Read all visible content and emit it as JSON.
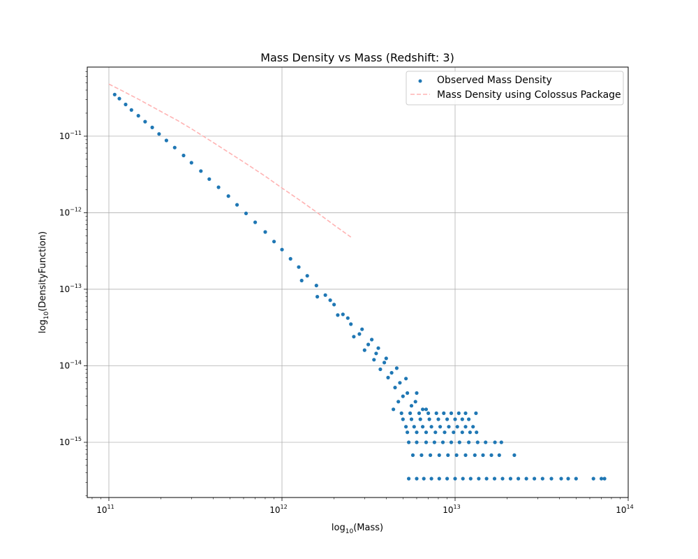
{
  "chart_data": {
    "type": "scatter",
    "title": "Mass Density vs Mass (Redshift: 3)",
    "xlabel": {
      "prefix": "log",
      "sub": "10",
      "text": "(Mass)"
    },
    "ylabel": {
      "prefix": "log",
      "sub": "10",
      "text": "(DensityFunction)"
    },
    "xscale": "log",
    "yscale": "log",
    "xlim": [
      75000000000.0,
      100000000000000.0
    ],
    "ylim": [
      1.9e-16,
      8e-11
    ],
    "grid": true,
    "legend_position": "top-right",
    "x_ticks": [
      {
        "value": 100000000000.0,
        "base": "10",
        "exp": "11"
      },
      {
        "value": 1000000000000.0,
        "base": "10",
        "exp": "12"
      },
      {
        "value": 10000000000000.0,
        "base": "10",
        "exp": "13"
      },
      {
        "value": 100000000000000.0,
        "base": "10",
        "exp": "14"
      }
    ],
    "y_ticks": [
      {
        "value": 1e-11,
        "base": "10",
        "exp": "−11"
      },
      {
        "value": 1e-12,
        "base": "10",
        "exp": "−12"
      },
      {
        "value": 1e-13,
        "base": "10",
        "exp": "−13"
      },
      {
        "value": 1e-14,
        "base": "10",
        "exp": "−14"
      },
      {
        "value": 1e-15,
        "base": "10",
        "exp": "−15"
      }
    ],
    "series": [
      {
        "name": "Observed Mass Density",
        "kind": "scatter",
        "color": "#1f77b4",
        "points": [
          [
            108000000000.0,
            3.5e-11
          ],
          [
            115000000000.0,
            3.1e-11
          ],
          [
            125000000000.0,
            2.6e-11
          ],
          [
            135000000000.0,
            2.2e-11
          ],
          [
            148000000000.0,
            1.85e-11
          ],
          [
            162000000000.0,
            1.55e-11
          ],
          [
            178000000000.0,
            1.3e-11
          ],
          [
            195000000000.0,
            1.07e-11
          ],
          [
            215000000000.0,
            8.8e-12
          ],
          [
            240000000000.0,
            7.1e-12
          ],
          [
            270000000000.0,
            5.6e-12
          ],
          [
            300000000000.0,
            4.5e-12
          ],
          [
            340000000000.0,
            3.5e-12
          ],
          [
            380000000000.0,
            2.75e-12
          ],
          [
            430000000000.0,
            2.15e-12
          ],
          [
            490000000000.0,
            1.65e-12
          ],
          [
            550000000000.0,
            1.27e-12
          ],
          [
            620000000000.0,
            9.8e-13
          ],
          [
            700000000000.0,
            7.5e-13
          ],
          [
            800000000000.0,
            5.6e-13
          ],
          [
            900000000000.0,
            4.2e-13
          ],
          [
            1000000000000.0,
            3.3e-13
          ],
          [
            1120000000000.0,
            2.5e-13
          ],
          [
            1250000000000.0,
            1.95e-13
          ],
          [
            1400000000000.0,
            1.5e-13
          ],
          [
            1580000000000.0,
            1.12e-13
          ],
          [
            1780000000000.0,
            8.4e-14
          ],
          [
            2000000000000.0,
            6.3e-14
          ],
          [
            2250000000000.0,
            4.7e-14
          ],
          [
            2500000000000.0,
            3.5e-14
          ],
          [
            2800000000000.0,
            2.6e-14
          ],
          [
            3150000000000.0,
            1.9e-14
          ],
          [
            3500000000000.0,
            1.45e-14
          ],
          [
            3900000000000.0,
            1.1e-14
          ],
          [
            4300000000000.0,
            8.1e-15
          ],
          [
            4800000000000.0,
            6e-15
          ],
          [
            5300000000000.0,
            4.4e-15
          ],
          [
            5900000000000.0,
            3.4e-15
          ],
          [
            6500000000000.0,
            2.7e-15
          ],
          [
            1300000000000.0,
            1.3e-13
          ],
          [
            1600000000000.0,
            8e-14
          ],
          [
            2100000000000.0,
            4.6e-14
          ],
          [
            2600000000000.0,
            2.4e-14
          ],
          [
            3000000000000.0,
            1.6e-14
          ],
          [
            3400000000000.0,
            1.2e-14
          ],
          [
            3700000000000.0,
            9e-15
          ],
          [
            4100000000000.0,
            7e-15
          ],
          [
            4500000000000.0,
            5.2e-15
          ],
          [
            5000000000000.0,
            4e-15
          ],
          [
            5600000000000.0,
            3e-15
          ],
          [
            1900000000000.0,
            7.2e-14
          ],
          [
            2400000000000.0,
            4.2e-14
          ],
          [
            2900000000000.0,
            3e-14
          ],
          [
            3300000000000.0,
            2.2e-14
          ],
          [
            3600000000000.0,
            1.7e-14
          ],
          [
            4000000000000.0,
            1.25e-14
          ],
          [
            4600000000000.0,
            9.3e-15
          ],
          [
            5200000000000.0,
            6.8e-15
          ],
          [
            4400000000000.0,
            2.7e-15
          ],
          [
            4700000000000.0,
            3.4e-15
          ],
          [
            6000000000000.0,
            4.4e-15
          ],
          [
            6800000000000.0,
            2.7e-15
          ],
          [
            4900000000000.0,
            2.4e-15
          ],
          [
            5500000000000.0,
            2.4e-15
          ],
          [
            6200000000000.0,
            2.4e-15
          ],
          [
            7000000000000.0,
            2.4e-15
          ],
          [
            7800000000000.0,
            2.4e-15
          ],
          [
            8600000000000.0,
            2.4e-15
          ],
          [
            9500000000000.0,
            2.4e-15
          ],
          [
            10500000000000.0,
            2.4e-15
          ],
          [
            11500000000000.0,
            2.4e-15
          ],
          [
            5000000000000.0,
            2e-15
          ],
          [
            5600000000000.0,
            2e-15
          ],
          [
            6300000000000.0,
            2e-15
          ],
          [
            7100000000000.0,
            2e-15
          ],
          [
            8000000000000.0,
            2e-15
          ],
          [
            9000000000000.0,
            2e-15
          ],
          [
            10000000000000.0,
            2e-15
          ],
          [
            11000000000000.0,
            2e-15
          ],
          [
            12000000000000.0,
            2e-15
          ],
          [
            5200000000000.0,
            1.6e-15
          ],
          [
            5800000000000.0,
            1.6e-15
          ],
          [
            6500000000000.0,
            1.6e-15
          ],
          [
            7300000000000.0,
            1.6e-15
          ],
          [
            8200000000000.0,
            1.6e-15
          ],
          [
            9200000000000.0,
            1.6e-15
          ],
          [
            10300000000000.0,
            1.6e-15
          ],
          [
            11500000000000.0,
            1.6e-15
          ],
          [
            12700000000000.0,
            1.6e-15
          ],
          [
            5300000000000.0,
            1.35e-15
          ],
          [
            6000000000000.0,
            1.35e-15
          ],
          [
            6800000000000.0,
            1.35e-15
          ],
          [
            7700000000000.0,
            1.35e-15
          ],
          [
            8700000000000.0,
            1.35e-15
          ],
          [
            9800000000000.0,
            1.35e-15
          ],
          [
            11000000000000.0,
            1.35e-15
          ],
          [
            12200000000000.0,
            1.35e-15
          ],
          [
            13300000000000.0,
            1.35e-15
          ],
          [
            13200000000000.0,
            2.4e-15
          ],
          [
            5400000000000.0,
            1e-15
          ],
          [
            6000000000000.0,
            1e-15
          ],
          [
            6800000000000.0,
            1e-15
          ],
          [
            7600000000000.0,
            1e-15
          ],
          [
            8500000000000.0,
            1e-15
          ],
          [
            9500000000000.0,
            1e-15
          ],
          [
            10600000000000.0,
            1e-15
          ],
          [
            12000000000000.0,
            1e-15
          ],
          [
            13500000000000.0,
            1e-15
          ],
          [
            15000000000000.0,
            1e-15
          ],
          [
            17000000000000.0,
            1e-15
          ],
          [
            18500000000000.0,
            1e-15
          ],
          [
            5700000000000.0,
            6.8e-16
          ],
          [
            6400000000000.0,
            6.8e-16
          ],
          [
            7200000000000.0,
            6.8e-16
          ],
          [
            8100000000000.0,
            6.8e-16
          ],
          [
            9100000000000.0,
            6.8e-16
          ],
          [
            10200000000000.0,
            6.8e-16
          ],
          [
            11500000000000.0,
            6.8e-16
          ],
          [
            13000000000000.0,
            6.8e-16
          ],
          [
            14500000000000.0,
            6.8e-16
          ],
          [
            16200000000000.0,
            6.8e-16
          ],
          [
            18000000000000.0,
            6.8e-16
          ],
          [
            22000000000000.0,
            6.8e-16
          ],
          [
            5400000000000.0,
            3.35e-16
          ],
          [
            6000000000000.0,
            3.35e-16
          ],
          [
            6600000000000.0,
            3.35e-16
          ],
          [
            7300000000000.0,
            3.35e-16
          ],
          [
            8100000000000.0,
            3.35e-16
          ],
          [
            9000000000000.0,
            3.35e-16
          ],
          [
            10000000000000.0,
            3.35e-16
          ],
          [
            11100000000000.0,
            3.35e-16
          ],
          [
            12300000000000.0,
            3.35e-16
          ],
          [
            13700000000000.0,
            3.35e-16
          ],
          [
            15200000000000.0,
            3.35e-16
          ],
          [
            16900000000000.0,
            3.35e-16
          ],
          [
            18800000000000.0,
            3.35e-16
          ],
          [
            20900000000000.0,
            3.35e-16
          ],
          [
            23200000000000.0,
            3.35e-16
          ],
          [
            25800000000000.0,
            3.35e-16
          ],
          [
            28700000000000.0,
            3.35e-16
          ],
          [
            32000000000000.0,
            3.35e-16
          ],
          [
            36000000000000.0,
            3.35e-16
          ],
          [
            41000000000000.0,
            3.35e-16
          ],
          [
            45000000000000.0,
            3.35e-16
          ],
          [
            50000000000000.0,
            3.35e-16
          ],
          [
            63000000000000.0,
            3.35e-16
          ],
          [
            70000000000000.0,
            3.35e-16
          ],
          [
            73000000000000.0,
            3.35e-16
          ]
        ]
      },
      {
        "name": "Mass Density using Colossus Package",
        "kind": "line",
        "style": "dashed",
        "color": "#ffb3b3",
        "points": [
          [
            100000000000.0,
            4.8e-11
          ],
          [
            120000000000.0,
            3.9e-11
          ],
          [
            150000000000.0,
            3e-11
          ],
          [
            200000000000.0,
            2.1e-11
          ],
          [
            250000000000.0,
            1.6e-11
          ],
          [
            300000000000.0,
            1.25e-11
          ],
          [
            400000000000.0,
            8.3e-12
          ],
          [
            500000000000.0,
            6e-12
          ],
          [
            600000000000.0,
            4.6e-12
          ],
          [
            800000000000.0,
            3e-12
          ],
          [
            1000000000000.0,
            2.1e-12
          ],
          [
            1300000000000.0,
            1.4e-12
          ],
          [
            1600000000000.0,
            1e-12
          ],
          [
            2000000000000.0,
            6.9e-13
          ],
          [
            2500000000000.0,
            4.8e-13
          ]
        ]
      }
    ]
  }
}
